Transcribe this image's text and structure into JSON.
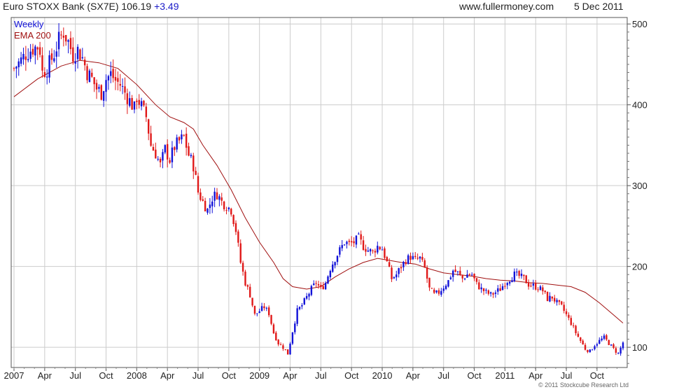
{
  "header": {
    "title": "Euro STOXX Bank (SX7E) 106.19",
    "change": "+3.49",
    "site": "www.fullermoney.com",
    "date": "5 Dec 2011"
  },
  "legend": {
    "weekly": "Weekly",
    "ema": "EMA 200"
  },
  "copyright": "© 2011 Stockcube Research Ltd",
  "colors": {
    "up": "#1212d8",
    "down": "#e01818",
    "ema": "#a01010",
    "grid": "#cccccc",
    "text": "#222222"
  },
  "chart_data": {
    "type": "candlestick",
    "yaxis": {
      "ticks": [
        100,
        200,
        300,
        400,
        500
      ],
      "ylim": [
        75,
        508
      ],
      "side": "right"
    },
    "xaxis": {
      "labels": [
        "2007",
        "Apr",
        "Jul",
        "Oct",
        "2008",
        "Apr",
        "Jul",
        "Oct",
        "2009",
        "Apr",
        "Jul",
        "Oct",
        "2010",
        "Apr",
        "Jul",
        "Oct",
        "2011",
        "Apr",
        "Jul",
        "Oct"
      ],
      "label_weeks": [
        0,
        13,
        26,
        39,
        52,
        65,
        78,
        91,
        104,
        117,
        130,
        143,
        156,
        169,
        182,
        195,
        208,
        221,
        234,
        247
      ],
      "total_weeks": 258
    },
    "grid": true,
    "series": [
      {
        "name": "Weekly",
        "kind": "ohlc",
        "close_points": [
          [
            0,
            445
          ],
          [
            3,
            455
          ],
          [
            5,
            463
          ],
          [
            8,
            470
          ],
          [
            10,
            472
          ],
          [
            11,
            468
          ],
          [
            12,
            440
          ],
          [
            14,
            445
          ],
          [
            17,
            463
          ],
          [
            19,
            480
          ],
          [
            21,
            490
          ],
          [
            23,
            478
          ],
          [
            25,
            462
          ],
          [
            27,
            468
          ],
          [
            29,
            458
          ],
          [
            31,
            440
          ],
          [
            33,
            432
          ],
          [
            35,
            420
          ],
          [
            37,
            415
          ],
          [
            39,
            432
          ],
          [
            41,
            438
          ],
          [
            43,
            430
          ],
          [
            45,
            425
          ],
          [
            47,
            415
          ],
          [
            49,
            405
          ],
          [
            51,
            395
          ],
          [
            52,
            410
          ],
          [
            54,
            398
          ],
          [
            56,
            385
          ],
          [
            58,
            350
          ],
          [
            60,
            340
          ],
          [
            62,
            325
          ],
          [
            64,
            345
          ],
          [
            66,
            332
          ],
          [
            68,
            348
          ],
          [
            70,
            355
          ],
          [
            72,
            360
          ],
          [
            74,
            338
          ],
          [
            76,
            325
          ],
          [
            78,
            292
          ],
          [
            80,
            280
          ],
          [
            82,
            270
          ],
          [
            84,
            285
          ],
          [
            86,
            290
          ],
          [
            88,
            280
          ],
          [
            90,
            275
          ],
          [
            92,
            270
          ],
          [
            94,
            245
          ],
          [
            96,
            205
          ],
          [
            98,
            180
          ],
          [
            100,
            165
          ],
          [
            102,
            140
          ],
          [
            104,
            145
          ],
          [
            106,
            150
          ],
          [
            108,
            142
          ],
          [
            110,
            118
          ],
          [
            112,
            105
          ],
          [
            114,
            100
          ],
          [
            116,
            92
          ],
          [
            118,
            120
          ],
          [
            120,
            145
          ],
          [
            122,
            152
          ],
          [
            124,
            162
          ],
          [
            126,
            172
          ],
          [
            128,
            180
          ],
          [
            130,
            172
          ],
          [
            132,
            180
          ],
          [
            134,
            198
          ],
          [
            136,
            210
          ],
          [
            138,
            220
          ],
          [
            140,
            230
          ],
          [
            142,
            228
          ],
          [
            144,
            230
          ],
          [
            146,
            235
          ],
          [
            148,
            225
          ],
          [
            150,
            220
          ],
          [
            152,
            218
          ],
          [
            154,
            225
          ],
          [
            156,
            222
          ],
          [
            158,
            205
          ],
          [
            160,
            185
          ],
          [
            162,
            190
          ],
          [
            164,
            200
          ],
          [
            166,
            208
          ],
          [
            168,
            212
          ],
          [
            170,
            208
          ],
          [
            172,
            210
          ],
          [
            174,
            198
          ],
          [
            176,
            172
          ],
          [
            178,
            165
          ],
          [
            180,
            168
          ],
          [
            182,
            175
          ],
          [
            184,
            182
          ],
          [
            186,
            195
          ],
          [
            188,
            192
          ],
          [
            190,
            185
          ],
          [
            192,
            190
          ],
          [
            194,
            190
          ],
          [
            196,
            178
          ],
          [
            198,
            172
          ],
          [
            200,
            168
          ],
          [
            202,
            165
          ],
          [
            204,
            168
          ],
          [
            206,
            172
          ],
          [
            208,
            180
          ],
          [
            210,
            185
          ],
          [
            212,
            190
          ],
          [
            214,
            188
          ],
          [
            216,
            185
          ],
          [
            218,
            178
          ],
          [
            220,
            176
          ],
          [
            222,
            174
          ],
          [
            224,
            170
          ],
          [
            226,
            160
          ],
          [
            228,
            162
          ],
          [
            230,
            155
          ],
          [
            232,
            150
          ],
          [
            234,
            140
          ],
          [
            236,
            130
          ],
          [
            238,
            118
          ],
          [
            240,
            108
          ],
          [
            242,
            98
          ],
          [
            244,
            95
          ],
          [
            246,
            103
          ],
          [
            248,
            108
          ],
          [
            250,
            112
          ],
          [
            252,
            105
          ],
          [
            254,
            98
          ],
          [
            256,
            92
          ],
          [
            258,
            106
          ]
        ]
      },
      {
        "name": "EMA 200",
        "kind": "line",
        "points": [
          [
            0,
            410
          ],
          [
            10,
            432
          ],
          [
            20,
            448
          ],
          [
            28,
            455
          ],
          [
            36,
            452
          ],
          [
            44,
            445
          ],
          [
            52,
            425
          ],
          [
            60,
            400
          ],
          [
            66,
            385
          ],
          [
            72,
            378
          ],
          [
            76,
            370
          ],
          [
            80,
            350
          ],
          [
            86,
            325
          ],
          [
            92,
            295
          ],
          [
            98,
            260
          ],
          [
            104,
            230
          ],
          [
            110,
            205
          ],
          [
            114,
            185
          ],
          [
            118,
            175
          ],
          [
            124,
            172
          ],
          [
            130,
            175
          ],
          [
            136,
            187
          ],
          [
            142,
            197
          ],
          [
            148,
            205
          ],
          [
            154,
            210
          ],
          [
            158,
            208
          ],
          [
            164,
            205
          ],
          [
            170,
            203
          ],
          [
            176,
            197
          ],
          [
            182,
            192
          ],
          [
            188,
            190
          ],
          [
            194,
            188
          ],
          [
            200,
            185
          ],
          [
            206,
            183
          ],
          [
            212,
            182
          ],
          [
            218,
            180
          ],
          [
            224,
            179
          ],
          [
            230,
            177
          ],
          [
            236,
            175
          ],
          [
            242,
            168
          ],
          [
            248,
            155
          ],
          [
            254,
            140
          ],
          [
            258,
            130
          ]
        ]
      }
    ]
  }
}
